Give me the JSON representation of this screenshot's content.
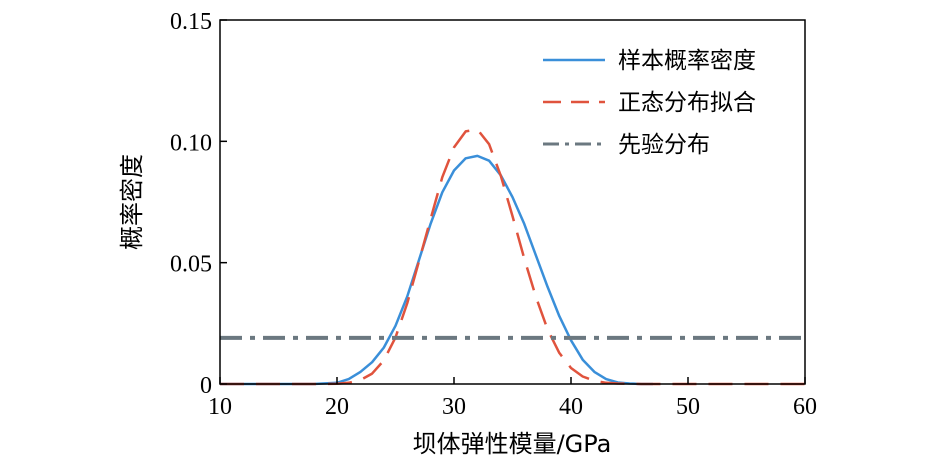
{
  "chart_data": {
    "type": "line",
    "xlabel": "坝体弹性模量/GPa",
    "ylabel": "概率密度",
    "xlim": [
      10,
      60
    ],
    "ylim": [
      0,
      0.15
    ],
    "xticks": [
      10,
      20,
      30,
      40,
      50,
      60
    ],
    "xtick_labels": [
      "10",
      "20",
      "30",
      "40",
      "50",
      "60"
    ],
    "yticks": [
      0,
      0.05,
      0.1,
      0.15
    ],
    "ytick_labels": [
      "0",
      "0.05",
      "0.10",
      "0.15"
    ],
    "grid": false,
    "legend_position": "top-right",
    "series": [
      {
        "name": "样本概率密度",
        "color": "#3a8fd9",
        "style": "solid",
        "x": [
          10,
          18,
          20,
          21,
          22,
          23,
          24,
          25,
          26,
          27,
          28,
          29,
          30,
          31,
          32,
          33,
          34,
          35,
          36,
          37,
          38,
          39,
          40,
          41,
          42,
          43,
          44,
          45,
          46,
          47
        ],
        "y": [
          0,
          0,
          0.0005,
          0.002,
          0.005,
          0.009,
          0.015,
          0.024,
          0.036,
          0.051,
          0.066,
          0.079,
          0.088,
          0.093,
          0.094,
          0.092,
          0.086,
          0.077,
          0.066,
          0.053,
          0.04,
          0.028,
          0.018,
          0.01,
          0.005,
          0.002,
          0.0006,
          0.0002,
          0,
          0
        ]
      },
      {
        "name": "正态分布拟合",
        "color": "#e0533d",
        "style": "dashed",
        "x": [
          10,
          18,
          20,
          21,
          22,
          23,
          24,
          25,
          26,
          27,
          28,
          29,
          30,
          31,
          32,
          33,
          34,
          35,
          36,
          37,
          38,
          39,
          40,
          41,
          42,
          43,
          44,
          46,
          50,
          60
        ],
        "y": [
          0,
          0,
          0.0001,
          0.0005,
          0.0016,
          0.0043,
          0.0097,
          0.0192,
          0.0332,
          0.0505,
          0.068,
          0.0852,
          0.0975,
          0.1041,
          0.1049,
          0.0988,
          0.0858,
          0.0692,
          0.0518,
          0.0359,
          0.0225,
          0.0128,
          0.0066,
          0.0031,
          0.0013,
          0.0005,
          0.0002,
          0,
          0,
          0
        ]
      },
      {
        "name": "先验分布",
        "color": "#6b7880",
        "style": "dashdot",
        "x": [
          10,
          60
        ],
        "y": [
          0.019,
          0.019
        ]
      }
    ]
  }
}
